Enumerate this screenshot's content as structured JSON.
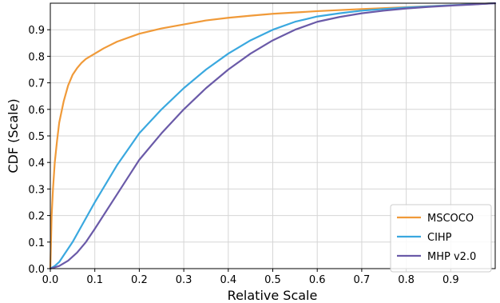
{
  "chart_data": {
    "type": "line",
    "title": "",
    "xlabel": "Relative Scale",
    "ylabel": "CDF (Scale)",
    "xlim": [
      0,
      1
    ],
    "ylim": [
      0,
      1
    ],
    "x_ticks": [
      "0.0",
      "0.1",
      "0.2",
      "0.3",
      "0.4",
      "0.5",
      "0.6",
      "0.7",
      "0.8",
      "0.9"
    ],
    "y_ticks": [
      "0.0",
      "0.1",
      "0.2",
      "0.3",
      "0.4",
      "0.5",
      "0.6",
      "0.7",
      "0.8",
      "0.9"
    ],
    "grid": true,
    "legend_position": "bottom-right",
    "series": [
      {
        "name": "MSCOCO",
        "color": "#f09a39",
        "x": [
          0,
          0.003,
          0.006,
          0.01,
          0.015,
          0.02,
          0.03,
          0.04,
          0.05,
          0.06,
          0.07,
          0.08,
          0.1,
          0.12,
          0.15,
          0.2,
          0.25,
          0.3,
          0.35,
          0.4,
          0.45,
          0.5,
          0.6,
          0.7,
          0.8,
          0.9,
          1.0
        ],
        "y": [
          0,
          0.2,
          0.3,
          0.4,
          0.48,
          0.55,
          0.63,
          0.69,
          0.73,
          0.755,
          0.775,
          0.79,
          0.81,
          0.83,
          0.855,
          0.885,
          0.905,
          0.92,
          0.935,
          0.945,
          0.953,
          0.96,
          0.97,
          0.978,
          0.985,
          0.992,
          1.0
        ]
      },
      {
        "name": "CIHP",
        "color": "#3aa8df",
        "x": [
          0,
          0.01,
          0.02,
          0.03,
          0.05,
          0.07,
          0.1,
          0.125,
          0.15,
          0.175,
          0.2,
          0.25,
          0.3,
          0.35,
          0.4,
          0.45,
          0.5,
          0.55,
          0.6,
          0.65,
          0.7,
          0.75,
          0.8,
          0.85,
          0.9,
          0.95,
          1.0
        ],
        "y": [
          0,
          0.01,
          0.025,
          0.05,
          0.1,
          0.16,
          0.25,
          0.32,
          0.39,
          0.45,
          0.51,
          0.6,
          0.68,
          0.75,
          0.81,
          0.86,
          0.9,
          0.93,
          0.95,
          0.962,
          0.972,
          0.978,
          0.984,
          0.988,
          0.992,
          0.996,
          1.0
        ]
      },
      {
        "name": "MHP v2.0",
        "color": "#6a5aa8",
        "x": [
          0,
          0.02,
          0.04,
          0.06,
          0.08,
          0.1,
          0.125,
          0.15,
          0.175,
          0.2,
          0.25,
          0.3,
          0.35,
          0.4,
          0.45,
          0.5,
          0.55,
          0.6,
          0.65,
          0.7,
          0.75,
          0.8,
          0.85,
          0.9,
          0.95,
          1.0
        ],
        "y": [
          0,
          0.01,
          0.03,
          0.06,
          0.1,
          0.15,
          0.215,
          0.28,
          0.345,
          0.41,
          0.51,
          0.6,
          0.68,
          0.75,
          0.81,
          0.86,
          0.9,
          0.93,
          0.948,
          0.962,
          0.972,
          0.98,
          0.986,
          0.991,
          0.995,
          1.0
        ]
      }
    ]
  }
}
